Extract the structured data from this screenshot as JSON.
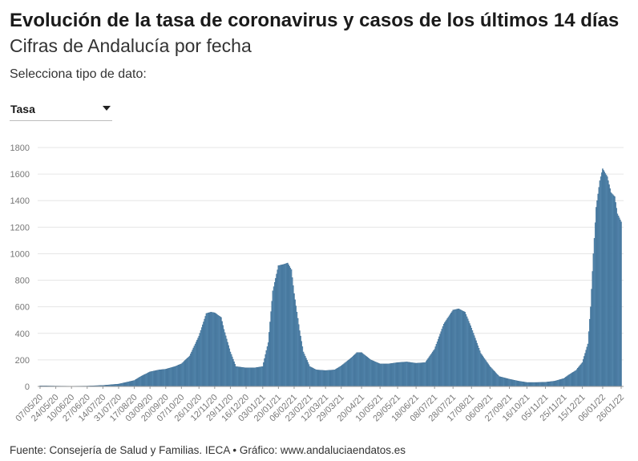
{
  "title": "Evolución de la tasa de coronavirus y casos de los últimos 14 días",
  "subtitle": "Cifras de Andalucía por fecha",
  "selector": {
    "label": "Selecciona tipo de dato:",
    "value": "Tasa"
  },
  "source": "Fuente: Consejería de Salud y Familias. IECA • Gráfico: www.andaluciaendatos.es",
  "colors": {
    "bar": "#5b8db3",
    "bar_stroke": "#2e5f86",
    "grid": "#e6e6e6"
  },
  "chart_data": {
    "type": "bar",
    "xlabel": "",
    "ylabel": "",
    "ylim": [
      0,
      1800
    ],
    "y_ticks": [
      "0",
      "200",
      "400",
      "600",
      "800",
      "1000",
      "1200",
      "1400",
      "1600",
      "1800"
    ],
    "x_tick_labels": [
      "07/05/20",
      "24/05/20",
      "10/06/20",
      "27/06/20",
      "14/07/20",
      "31/07/20",
      "17/08/20",
      "03/09/20",
      "20/09/20",
      "07/10/20",
      "26/10/20",
      "12/11/20",
      "29/11/20",
      "16/12/20",
      "03/01/21",
      "20/01/21",
      "06/02/21",
      "23/02/21",
      "12/03/21",
      "29/03/21",
      "20/04/21",
      "10/05/21",
      "29/05/21",
      "18/06/21",
      "08/07/21",
      "28/07/21",
      "17/08/21",
      "06/09/21",
      "27/09/21",
      "16/10/21",
      "05/11/21",
      "25/11/21",
      "15/12/21",
      "06/01/22",
      "26/01/22"
    ],
    "grid": true,
    "legend": "none",
    "series": [
      {
        "name": "",
        "x": [
          "07/05/20",
          "24/05/20",
          "10/06/20",
          "27/06/20",
          "14/07/20",
          "31/07/20",
          "17/08/20",
          "24/08/20",
          "03/09/20",
          "13/09/20",
          "20/09/20",
          "30/09/20",
          "07/10/20",
          "16/10/20",
          "26/10/20",
          "03/11/20",
          "08/11/20",
          "12/11/20",
          "19/11/20",
          "22/11/20",
          "29/11/20",
          "05/12/20",
          "16/12/20",
          "25/12/20",
          "03/01/21",
          "09/01/21",
          "14/01/21",
          "20/01/21",
          "26/01/21",
          "30/01/21",
          "03/02/21",
          "06/02/21",
          "12/02/21",
          "16/02/21",
          "23/02/21",
          "02/03/21",
          "12/03/21",
          "22/03/21",
          "29/03/21",
          "08/04/21",
          "15/04/21",
          "20/04/21",
          "30/04/21",
          "10/05/21",
          "19/05/21",
          "29/05/21",
          "08/06/21",
          "18/06/21",
          "28/06/21",
          "08/07/21",
          "18/07/21",
          "28/07/21",
          "03/08/21",
          "10/08/21",
          "17/08/21",
          "27/08/21",
          "06/09/21",
          "16/09/21",
          "27/09/21",
          "07/10/21",
          "16/10/21",
          "26/10/21",
          "05/11/21",
          "15/11/21",
          "25/11/21",
          "01/12/21",
          "08/12/21",
          "15/12/21",
          "21/12/21",
          "24/12/21",
          "27/12/21",
          "30/12/21",
          "03/01/22",
          "06/01/22",
          "11/01/22",
          "15/01/22",
          "19/01/22",
          "22/01/22",
          "26/01/22"
        ],
        "values": [
          5,
          3,
          2,
          3,
          8,
          18,
          45,
          75,
          110,
          125,
          130,
          150,
          170,
          230,
          380,
          550,
          560,
          555,
          520,
          430,
          260,
          150,
          140,
          140,
          150,
          330,
          720,
          910,
          920,
          930,
          880,
          700,
          420,
          260,
          150,
          125,
          120,
          125,
          155,
          210,
          255,
          255,
          200,
          170,
          170,
          180,
          185,
          175,
          180,
          280,
          470,
          575,
          585,
          560,
          440,
          250,
          150,
          75,
          55,
          40,
          30,
          30,
          32,
          40,
          60,
          90,
          120,
          180,
          320,
          600,
          1000,
          1350,
          1550,
          1640,
          1580,
          1460,
          1430,
          1300,
          1240
        ]
      }
    ]
  }
}
